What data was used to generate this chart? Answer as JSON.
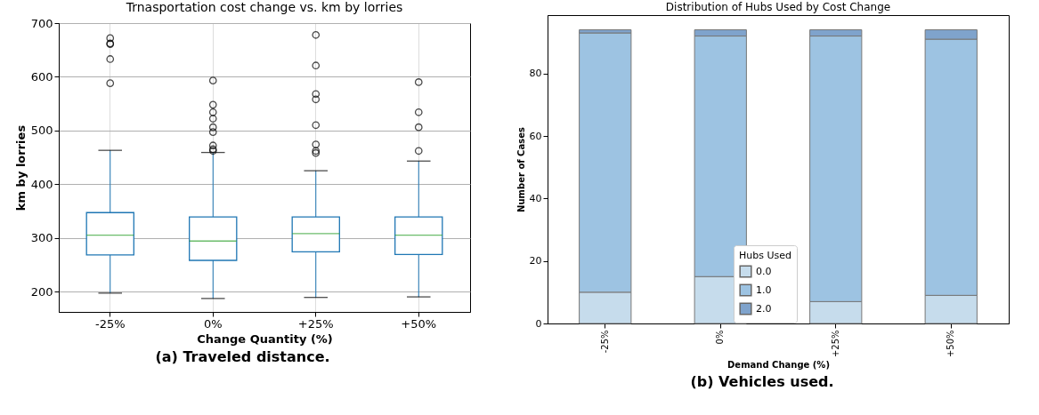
{
  "chart_data": [
    {
      "type": "box",
      "title": "Trnasportation cost change vs. km by lorries",
      "xlabel": "Change Quantity (%)",
      "ylabel": "km by lorries",
      "categories": [
        "-25%",
        "0%",
        "+25%",
        "+50%"
      ],
      "color": "#1f77b4",
      "ylim": [
        162,
        700
      ],
      "yticks": [
        200,
        300,
        400,
        500,
        600,
        700
      ],
      "grid": true,
      "annotations": [
        "(a) Traveled distance."
      ],
      "boxes": [
        {
          "low": 197,
          "q1": 268,
          "median": 305,
          "q3": 347,
          "high": 463,
          "outliers": [
            588,
            633,
            661,
            662,
            672
          ]
        },
        {
          "low": 187,
          "q1": 258,
          "median": 294,
          "q3": 339,
          "high": 459,
          "outliers": [
            462,
            465,
            472,
            497,
            506,
            522,
            534,
            548,
            593
          ]
        },
        {
          "low": 189,
          "q1": 274,
          "median": 308,
          "q3": 339,
          "high": 425,
          "outliers": [
            458,
            462,
            474,
            510,
            558,
            568,
            621,
            678
          ]
        },
        {
          "low": 190,
          "q1": 269,
          "median": 305,
          "q3": 339,
          "high": 443,
          "outliers": [
            462,
            506,
            534,
            590
          ]
        }
      ]
    },
    {
      "type": "bar",
      "stacked": true,
      "title": "Distribution of Hubs Used by Cost Change",
      "xlabel": "Demand Change (%)",
      "ylabel": "Number of Cases",
      "legend_title": "Hubs Used",
      "legend": "bottom",
      "categories": [
        "-25%",
        "0%",
        "+25%",
        "+50%"
      ],
      "ylim": [
        0,
        98.7
      ],
      "yticks": [
        0,
        20,
        40,
        60,
        80
      ],
      "annotations": [
        "(b) Vehicles used."
      ],
      "series": [
        {
          "name": "0.0",
          "color": "#c6dcec",
          "values": [
            10,
            15,
            7,
            9
          ]
        },
        {
          "name": "1.0",
          "color": "#9dc3e2",
          "values": [
            83,
            77,
            85,
            82
          ]
        },
        {
          "name": "2.0",
          "color": "#7fa3cc",
          "values": [
            1,
            2,
            2,
            3
          ]
        }
      ]
    }
  ]
}
